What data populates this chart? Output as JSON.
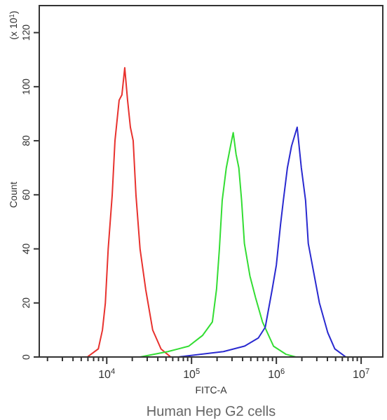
{
  "chart_data": {
    "type": "line",
    "xlabel": "FITC-A",
    "ylabel": "Count",
    "log": "x",
    "annotations": [
      "(x 10$^{1}$)",
      "Human Hep G2 cells"
    ],
    "xlim": [
      1600,
      18000000
    ],
    "ylim": [
      0,
      130
    ],
    "xticks": [
      {
        "value": 2000,
        "label": null
      },
      {
        "value": 3000,
        "label": null
      },
      {
        "value": 4000,
        "label": null
      },
      {
        "value": 5000,
        "label": null
      },
      {
        "value": 6000,
        "label": null
      },
      {
        "value": 7000,
        "label": null
      },
      {
        "value": 8000,
        "label": null
      },
      {
        "value": 9000,
        "label": null
      },
      {
        "value": 10000,
        "label": "10$^{4}$"
      },
      {
        "value": 20000,
        "label": null
      },
      {
        "value": 30000,
        "label": null
      },
      {
        "value": 40000,
        "label": null
      },
      {
        "value": 50000,
        "label": null
      },
      {
        "value": 60000,
        "label": null
      },
      {
        "value": 70000,
        "label": null
      },
      {
        "value": 80000,
        "label": null
      },
      {
        "value": 90000,
        "label": null
      },
      {
        "value": 100000,
        "label": "10$^{5}$"
      },
      {
        "value": 200000,
        "label": null
      },
      {
        "value": 300000,
        "label": null
      },
      {
        "value": 400000,
        "label": null
      },
      {
        "value": 500000,
        "label": null
      },
      {
        "value": 600000,
        "label": null
      },
      {
        "value": 700000,
        "label": null
      },
      {
        "value": 800000,
        "label": null
      },
      {
        "value": 900000,
        "label": null
      },
      {
        "value": 1000000,
        "label": "10$^{6}$"
      },
      {
        "value": 2000000,
        "label": null
      },
      {
        "value": 3000000,
        "label": null
      },
      {
        "value": 4000000,
        "label": null
      },
      {
        "value": 5000000,
        "label": null
      },
      {
        "value": 6000000,
        "label": null
      },
      {
        "value": 7000000,
        "label": null
      },
      {
        "value": 8000000,
        "label": null
      },
      {
        "value": 9000000,
        "label": null
      },
      {
        "value": 10000000,
        "label": "10$^{7}$"
      }
    ],
    "yticks": [
      0,
      20,
      40,
      60,
      80,
      100,
      120
    ],
    "grid": false,
    "series": [
      {
        "color": "#e8322e",
        "x": [
          5900,
          7950,
          8900,
          9630,
          10400,
          11600,
          12500,
          14000,
          15100,
          16300,
          17600,
          19000,
          20500,
          22100,
          24700,
          28800,
          34800,
          43600,
          56800
        ],
        "values": [
          0,
          3,
          10,
          20,
          40,
          60,
          80,
          95,
          97,
          107,
          95,
          85,
          80,
          60,
          40,
          25,
          10,
          3,
          0
        ]
      },
      {
        "color": "#33dd33",
        "x": [
          24700,
          52600,
          92700,
          135000,
          176000,
          197000,
          213000,
          230000,
          257000,
          288000,
          310000,
          335000,
          361000,
          389000,
          420000,
          488000,
          568000,
          686000,
          927000,
          1300000,
          1700000
        ],
        "values": [
          0,
          2,
          4,
          8,
          13,
          25,
          40,
          58,
          70,
          78,
          83,
          75,
          70,
          58,
          42,
          30,
          22,
          13,
          4,
          1,
          0
        ]
      },
      {
        "color": "#2a2ad0",
        "x": [
          68500,
          238000,
          420000,
          612000,
          740000,
          893000,
          1000000,
          1120000,
          1210000,
          1350000,
          1510000,
          1760000,
          1970000,
          2210000,
          2380000,
          3220000,
          4040000,
          4890000,
          6600000
        ],
        "values": [
          0,
          2,
          4,
          7,
          11,
          25,
          34,
          49,
          58,
          70,
          78,
          85,
          70,
          58,
          42,
          20,
          9,
          3,
          0
        ]
      }
    ]
  }
}
